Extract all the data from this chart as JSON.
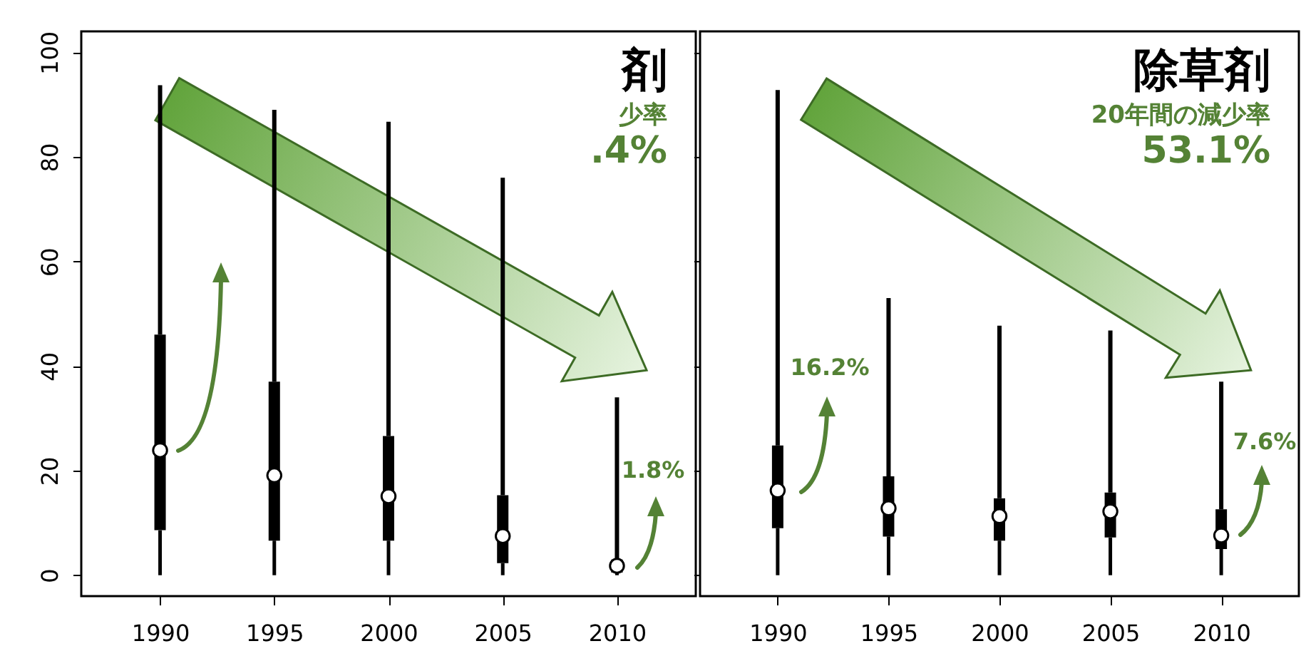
{
  "chart_data": [
    {
      "type": "box",
      "title": "剤",
      "subtitle": "少率",
      "categories": [
        "1990",
        "1995",
        "2000",
        "2005",
        "2010"
      ],
      "boxes": [
        {
          "low": 0,
          "q1": 8.6,
          "median": 23.9,
          "q3": 46,
          "high": 93.7
        },
        {
          "low": 0,
          "q1": 6.6,
          "median": 19.1,
          "q3": 37,
          "high": 89
        },
        {
          "low": 0,
          "q1": 6.6,
          "median": 15.1,
          "q3": 26.6,
          "high": 86.7
        },
        {
          "low": 0,
          "q1": 2.3,
          "median": 7.5,
          "q3": 15.3,
          "high": 76
        },
        {
          "low": 0,
          "q1": 0.5,
          "median": 1.8,
          "q3": 3,
          "high": 34
        }
      ],
      "ylim": [
        -4,
        104
      ],
      "yticks": [
        0,
        20,
        40,
        60,
        80,
        100
      ],
      "annotations": [
        ".4%",
        "1.8%"
      ]
    },
    {
      "type": "box",
      "title": "除草剤",
      "subtitle": "20年間の減少率",
      "categories": [
        "1990",
        "1995",
        "2000",
        "2005",
        "2010"
      ],
      "boxes": [
        {
          "low": 0,
          "q1": 9.0,
          "median": 16.2,
          "q3": 24.8,
          "high": 92.8
        },
        {
          "low": 0,
          "q1": 7.4,
          "median": 12.8,
          "q3": 18.9,
          "high": 53
        },
        {
          "low": 0,
          "q1": 6.6,
          "median": 11.3,
          "q3": 14.7,
          "high": 47.7
        },
        {
          "low": 0,
          "q1": 7.2,
          "median": 12.2,
          "q3": 15.8,
          "high": 46.8
        },
        {
          "low": 0,
          "q1": 5.0,
          "median": 7.6,
          "q3": 12.6,
          "high": 37
        }
      ],
      "ylim": [
        -4,
        104
      ],
      "yticks": [
        0,
        20,
        40,
        60,
        80,
        100
      ],
      "tick_labels": "x",
      "annotations": [
        "53.1%",
        "16.2%",
        "7.6%"
      ]
    }
  ]
}
